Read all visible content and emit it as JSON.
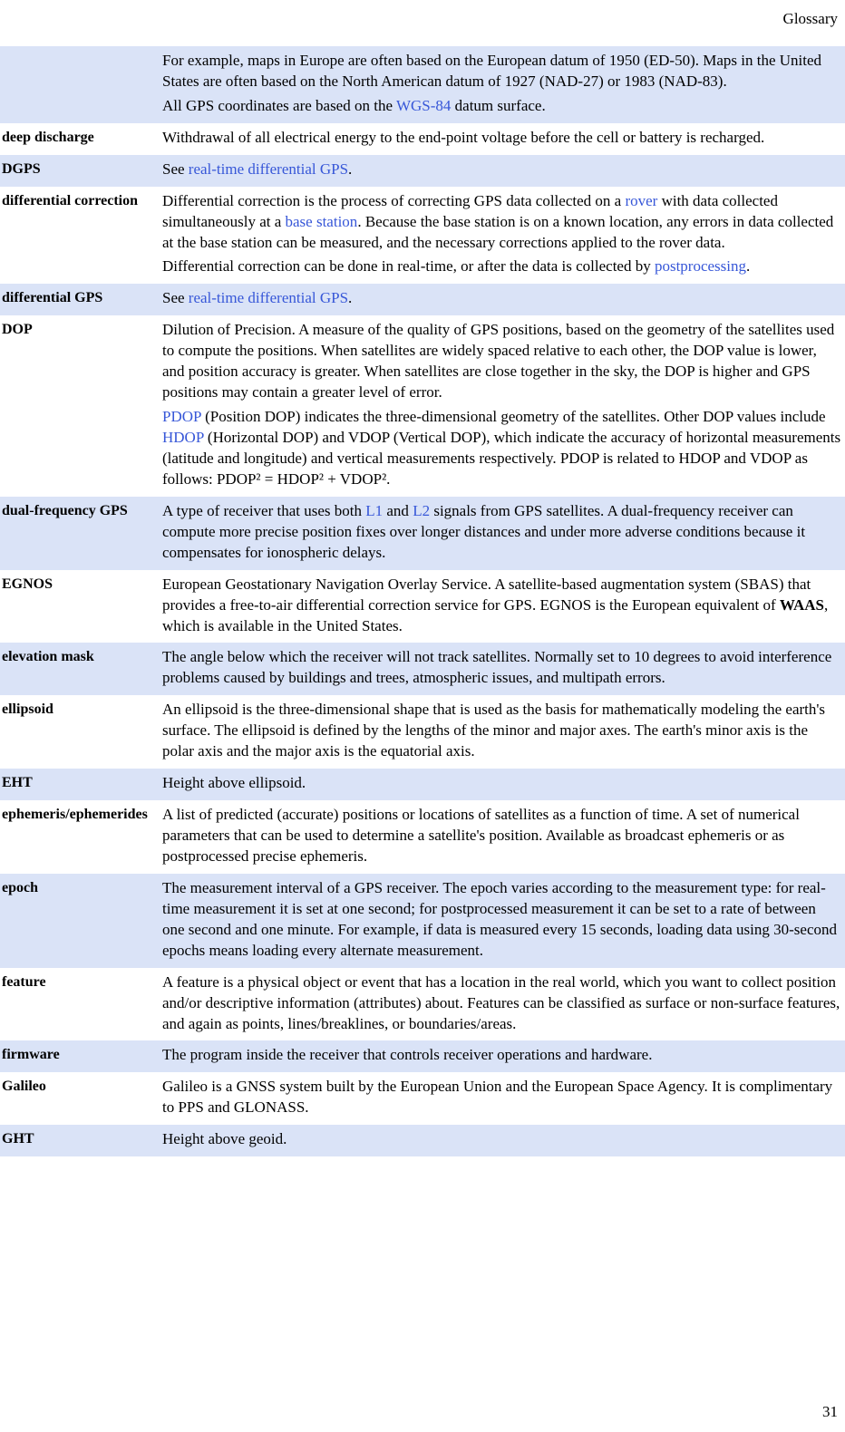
{
  "header": {
    "title": "Glossary"
  },
  "pageNumber": "31",
  "colors": {
    "shaded_bg": "#dae3f7",
    "link": "#3757d8",
    "text": "#000000",
    "background": "#ffffff"
  },
  "entries": [
    {
      "term": "",
      "shaded": true,
      "paragraphs": [
        [
          {
            "t": "For example, maps in Europe are often based on the European datum of 1950 (ED-50). Maps in the United States are often based on the North American datum of 1927 (NAD-27) or 1983 (NAD-83)."
          }
        ],
        [
          {
            "t": "All GPS coordinates are based on the "
          },
          {
            "t": "WGS-84",
            "link": true
          },
          {
            "t": " datum surface."
          }
        ]
      ]
    },
    {
      "term": "deep discharge",
      "shaded": false,
      "paragraphs": [
        [
          {
            "t": "Withdrawal of all electrical energy to the end-point voltage before the cell or battery is recharged."
          }
        ]
      ]
    },
    {
      "term": "DGPS",
      "shaded": true,
      "paragraphs": [
        [
          {
            "t": "See "
          },
          {
            "t": "real-time differential GPS",
            "link": true
          },
          {
            "t": "."
          }
        ]
      ]
    },
    {
      "term": "differential correction",
      "shaded": false,
      "paragraphs": [
        [
          {
            "t": "Differential correction is the process of correcting GPS data collected on a "
          },
          {
            "t": "rover",
            "link": true
          },
          {
            "t": " with data collected simultaneously at a "
          },
          {
            "t": "base station",
            "link": true
          },
          {
            "t": ". Because the base station is on a known location, any errors in data collected at the base station can be measured, and the necessary corrections applied to the rover data."
          }
        ],
        [
          {
            "t": "Differential correction can be done in real-time, or after the data is collected by "
          },
          {
            "t": "postprocessing",
            "link": true
          },
          {
            "t": "."
          }
        ]
      ]
    },
    {
      "term": "differential GPS",
      "shaded": true,
      "paragraphs": [
        [
          {
            "t": "See "
          },
          {
            "t": "real-time differential GPS",
            "link": true
          },
          {
            "t": "."
          }
        ]
      ]
    },
    {
      "term": "DOP",
      "shaded": false,
      "paragraphs": [
        [
          {
            "t": "Dilution of Precision. A measure of the quality of GPS positions, based on the geometry of the satellites used to compute the positions. When satellites are widely spaced relative to each other, the DOP value is lower, and position accuracy is greater. When satellites are close together in the sky, the DOP is higher and GPS positions may contain a greater level of error."
          }
        ],
        [
          {
            "t": "PDOP",
            "link": true
          },
          {
            "t": " (Position DOP) indicates the three-dimensional geometry of the satellites. Other DOP values include "
          },
          {
            "t": "HDOP",
            "link": true
          },
          {
            "t": " (Horizontal DOP) and VDOP (Vertical DOP), which indicate the accuracy of horizontal measurements (latitude and longitude) and vertical measurements respectively. PDOP is related to HDOP and VDOP as follows: PDOP² = HDOP² + VDOP²."
          }
        ]
      ]
    },
    {
      "term": "dual-frequency GPS",
      "shaded": true,
      "paragraphs": [
        [
          {
            "t": "A type of receiver that uses both "
          },
          {
            "t": "L1",
            "link": true
          },
          {
            "t": " and "
          },
          {
            "t": "L2",
            "link": true
          },
          {
            "t": " signals from GPS satellites. A dual-frequency receiver can compute more precise position fixes over longer distances and under more adverse conditions because it compensates for ionospheric delays."
          }
        ]
      ]
    },
    {
      "term": "EGNOS",
      "shaded": false,
      "paragraphs": [
        [
          {
            "t": "European Geostationary Navigation Overlay Service. A satellite-based augmentation system (SBAS) that provides a free-to-air differential correction service for GPS. EGNOS is the European equivalent of "
          },
          {
            "t": "WAAS",
            "bold": true
          },
          {
            "t": ", which is available in the United States."
          }
        ]
      ]
    },
    {
      "term": "elevation mask",
      "shaded": true,
      "paragraphs": [
        [
          {
            "t": "The angle below which the receiver will not track satellites. Normally set to 10 degrees to avoid interference problems caused by buildings and trees, atmospheric issues, and multipath errors."
          }
        ]
      ]
    },
    {
      "term": "ellipsoid",
      "shaded": false,
      "paragraphs": [
        [
          {
            "t": "An ellipsoid is the three-dimensional shape that is used as the basis for mathematically modeling the earth's surface. The ellipsoid is defined by the lengths of the minor and major axes. The earth's minor axis is the polar axis and the major axis is the equatorial axis."
          }
        ]
      ]
    },
    {
      "term": "EHT",
      "shaded": true,
      "paragraphs": [
        [
          {
            "t": "Height above ellipsoid."
          }
        ]
      ]
    },
    {
      "term": "ephemeris/ephemerides",
      "shaded": false,
      "paragraphs": [
        [
          {
            "t": "A list of predicted (accurate) positions or locations of satellites as a function of time. A set of numerical parameters that can be used to determine a satellite's position. Available as broadcast ephemeris or as postprocessed precise ephemeris."
          }
        ]
      ]
    },
    {
      "term": "epoch",
      "shaded": true,
      "paragraphs": [
        [
          {
            "t": "The measurement interval of a GPS receiver. The epoch varies according to the measurement type: for real-time measurement it is set at one second; for postprocessed measurement it can be set to a rate of between one second and one minute. For example, if data is measured every 15 seconds, loading data using 30-second epochs means loading every alternate measurement."
          }
        ]
      ]
    },
    {
      "term": "feature",
      "shaded": false,
      "paragraphs": [
        [
          {
            "t": "A feature is a physical object or event that has a location in the real world, which you want to collect position and/or descriptive information (attributes) about. Features can be classified as surface or non-surface features, and again as points, lines/breaklines, or boundaries/areas."
          }
        ]
      ]
    },
    {
      "term": "firmware",
      "shaded": true,
      "paragraphs": [
        [
          {
            "t": "The program inside the receiver that controls receiver operations and hardware."
          }
        ]
      ]
    },
    {
      "term": "Galileo",
      "shaded": false,
      "paragraphs": [
        [
          {
            "t": "Galileo is a GNSS system built by the European Union and the European Space Agency. It is complimentary to PPS and GLONASS."
          }
        ]
      ]
    },
    {
      "term": "GHT",
      "shaded": true,
      "paragraphs": [
        [
          {
            "t": "Height above geoid."
          }
        ]
      ]
    }
  ]
}
